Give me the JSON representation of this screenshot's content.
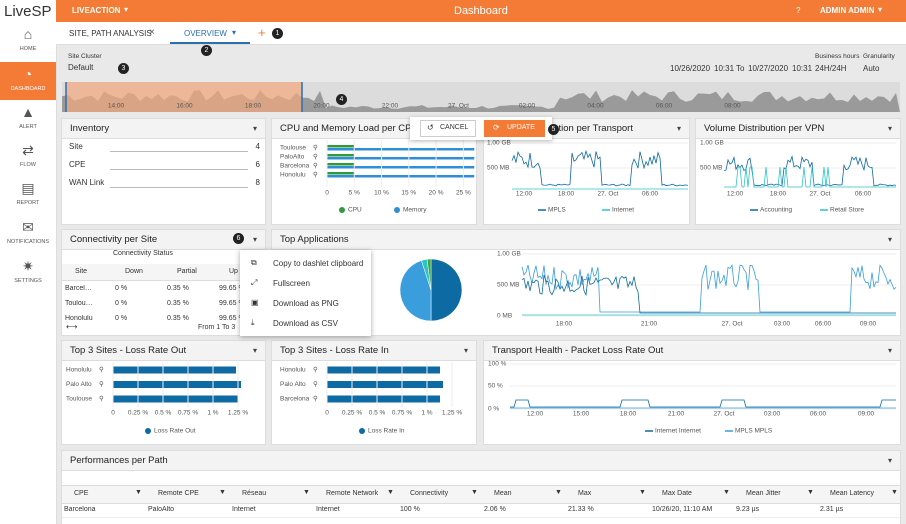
{
  "sidebar": {
    "logo": "LiveSP",
    "items": [
      "HOME",
      "DASHBOARD",
      "ALERT",
      "FLOW",
      "REPORT",
      "NOTIFICATIONS",
      "SETTINGS"
    ]
  },
  "topbar": {
    "org": "LIVEACTION",
    "title": "Dashboard",
    "user": "ADMIN ADMIN"
  },
  "tabs": [
    "SITE, PATH ANALYSIS",
    "OVERVIEW"
  ],
  "markers": [
    "1",
    "2",
    "3",
    "4",
    "5",
    "6"
  ],
  "filters": {
    "site_cluster_label": "Site Cluster",
    "site_cluster": "Default",
    "date_from": "10/26/2020",
    "time_from": "10:31",
    "to": "To",
    "date_to": "10/27/2020",
    "time_to": "10:31",
    "business_hours_label": "Business hours",
    "business_hours": "24H/24H",
    "granularity_label": "Granularity",
    "granularity": "Auto"
  },
  "timeline_ticks": [
    "14:00",
    "16:00",
    "18:00",
    "20:00",
    "22:00",
    "27. Oct",
    "02:00",
    "04:00",
    "06:00",
    "08:00"
  ],
  "buttons": {
    "cancel": "CANCEL",
    "update": "UPDATE"
  },
  "inventory": {
    "title": "Inventory",
    "rows": [
      [
        "Site",
        "4"
      ],
      [
        "CPE",
        "6"
      ],
      [
        "WAN Link",
        "8"
      ]
    ]
  },
  "cpu_memory": {
    "title": "CPU and Memory Load per CPE",
    "type": "bar",
    "categories": [
      "Toulouse",
      "PaloAlto",
      "Barcelona",
      "Honolulu"
    ],
    "series": [
      {
        "name": "CPU",
        "color": "#2e9a3c",
        "values": [
          5,
          5,
          5,
          5
        ]
      },
      {
        "name": "Memory",
        "color": "#2f8fd6",
        "values": [
          27,
          27,
          27,
          27
        ]
      }
    ],
    "xlim": [
      0,
      27.5
    ],
    "xticks": [
      0,
      {
        "value": 5,
        "label": "5 %"
      },
      {
        "value": 10,
        "label": "10 %"
      },
      {
        "value": 15,
        "label": "15 %"
      },
      {
        "value": 20,
        "label": "20 %"
      },
      {
        "value": 25,
        "label": "25 %"
      }
    ]
  },
  "volume_transport": {
    "title": "Volume Distribution per Transport",
    "yticks": [
      "1.00 GB",
      "500 MB"
    ],
    "xticks": [
      "12:00",
      "18:00",
      "27. Oct",
      "06:00"
    ],
    "legend": [
      "MPLS",
      "Internet"
    ]
  },
  "volume_vpn": {
    "title": "Volume Distribution per VPN",
    "yticks": [
      "1.00 GB",
      "500 MB"
    ],
    "xticks": [
      "12:00",
      "18:00",
      "27. Oct",
      "06:00"
    ],
    "legend": [
      "Accounting",
      "Retail Store"
    ]
  },
  "connectivity": {
    "title": "Connectivity per Site",
    "group": "Connectivity Status",
    "columns": [
      "Site",
      "Down",
      "Partial",
      "Up"
    ],
    "rows": [
      [
        "Barcelona",
        "0 %",
        "0.35 %",
        "99.65 %"
      ],
      [
        "Toulouse",
        "0 %",
        "0.35 %",
        "99.65 %"
      ],
      [
        "Honolulu",
        "0 %",
        "0.35 %",
        "99.65 %"
      ]
    ],
    "footer": "From 1 To 3"
  },
  "context_menu": [
    "Copy to dashlet clipboard",
    "Fullscreen",
    "Download as PNG",
    "Download as CSV"
  ],
  "top_applications": {
    "title": "Top Applications",
    "pie": {
      "type": "pie",
      "values": [
        50,
        45,
        3,
        2
      ],
      "colors": [
        "#0d6aa3",
        "#3a9ddc",
        "#2ec4c4",
        "#3aa64a"
      ]
    },
    "yticks": [
      "1.00 GB",
      "500 MB",
      "0 MB"
    ],
    "xticks": [
      "18:00",
      "21:00",
      "27. Oct",
      "03:00",
      "06:00",
      "09:00"
    ]
  },
  "loss_out": {
    "title": "Top 3 Sites - Loss Rate Out",
    "type": "bar",
    "categories": [
      "Honolulu",
      "Palo Alto",
      "Toulouse"
    ],
    "series": [
      {
        "name": "Loss Rate Out",
        "color": "#0d6aa3",
        "values": [
          1.23,
          1.28,
          1.25
        ]
      }
    ],
    "xlim": [
      0,
      1.3
    ],
    "xticks": [
      0,
      {
        "value": 0.25,
        "label": "0.25 %"
      },
      {
        "value": 0.5,
        "label": "0.5 %"
      },
      {
        "value": 0.75,
        "label": "0.75 %"
      },
      {
        "value": 1,
        "label": "1 %"
      },
      {
        "value": 1.25,
        "label": "1.25 %"
      }
    ]
  },
  "loss_in": {
    "title": "Top 3 Sites - Loss Rate In",
    "type": "bar",
    "categories": [
      "Honolulu",
      "Palo Alto",
      "Barcelona"
    ],
    "series": [
      {
        "name": "Loss Rate In",
        "color": "#0d6aa3",
        "values": [
          1.13,
          1.16,
          1.13
        ]
      }
    ],
    "xlim": [
      0,
      1.3
    ],
    "xticks": [
      0,
      {
        "value": 0.25,
        "label": "0.25 %"
      },
      {
        "value": 0.5,
        "label": "0.5 %"
      },
      {
        "value": 0.75,
        "label": "0.75 %"
      },
      {
        "value": 1,
        "label": "1 %"
      },
      {
        "value": 1.25,
        "label": "1.25 %"
      }
    ]
  },
  "transport_health": {
    "title": "Transport Health - Packet Loss Rate Out",
    "yticks": [
      "100 %",
      "50 %",
      "0 %"
    ],
    "xticks": [
      "12:00",
      "15:00",
      "18:00",
      "21:00",
      "27. Oct",
      "03:00",
      "06:00",
      "09:00"
    ],
    "legend": [
      "Internet Internet",
      "MPLS MPLS"
    ]
  },
  "performances": {
    "title": "Performances per Path",
    "columns": [
      "CPE",
      "Remote CPE",
      "Réseau",
      "Remote Network",
      "Connectivity",
      "Mean",
      "Max",
      "Max Date",
      "Mean Jitter",
      "Mean Latency"
    ],
    "rows": [
      [
        "Barcelona",
        "PaloAlto",
        "Internet",
        "Internet",
        "100 %",
        "2.06 %",
        "21.33 %",
        "10/26/20, 11:10 AM",
        "9.23 µs",
        "2.31 µs"
      ]
    ]
  }
}
